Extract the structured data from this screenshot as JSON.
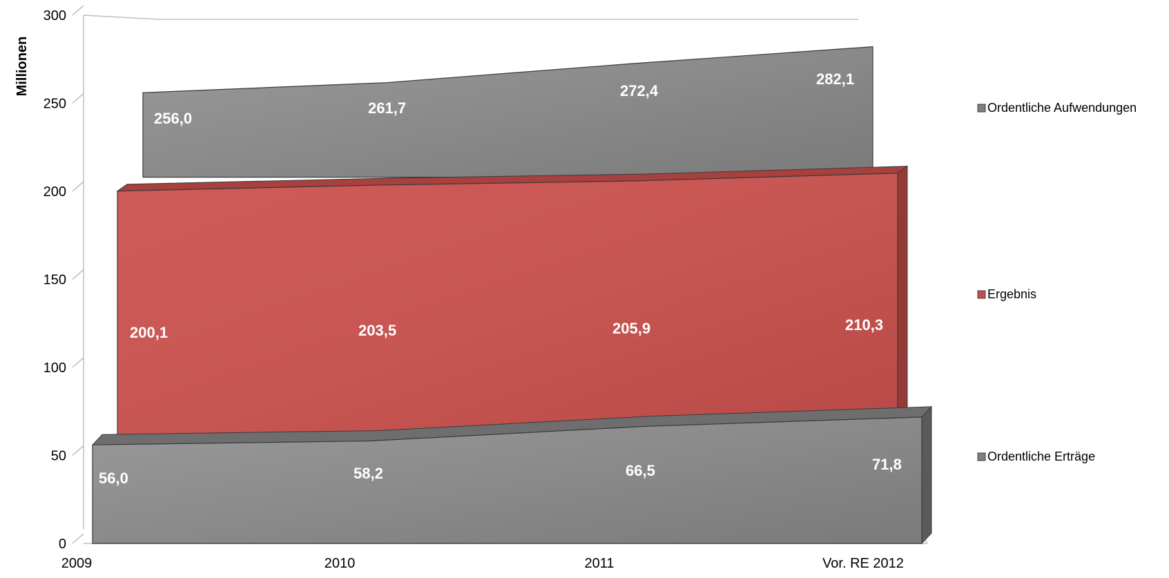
{
  "chart_data": {
    "type": "area",
    "title": "",
    "ylabel": "Millionen",
    "xlabel": "",
    "categories": [
      "2009",
      "2010",
      "2011",
      "Vor. RE 2012"
    ],
    "ylim": [
      0,
      300
    ],
    "yticks": [
      "0",
      "50",
      "100",
      "150",
      "200",
      "250",
      "300"
    ],
    "series": [
      {
        "name": "Ordentliche Erträge",
        "values": [
          56.0,
          58.2,
          66.5,
          71.8
        ],
        "labels": [
          "56,0",
          "58,2",
          "66,5",
          "71,8"
        ],
        "color": "#808080"
      },
      {
        "name": "Ergebnis",
        "values": [
          200.1,
          203.5,
          205.9,
          210.3
        ],
        "labels": [
          "200,1",
          "203,5",
          "205,9",
          "210,3"
        ],
        "color": "#c0504d"
      },
      {
        "name": "Ordentliche Aufwendungen",
        "values": [
          256.0,
          261.7,
          272.4,
          282.1
        ],
        "labels": [
          "256,0",
          "261,7",
          "272,4",
          "282,1"
        ],
        "color": "#808080"
      }
    ],
    "legend_position": "right",
    "grid": false,
    "style": "3d"
  }
}
